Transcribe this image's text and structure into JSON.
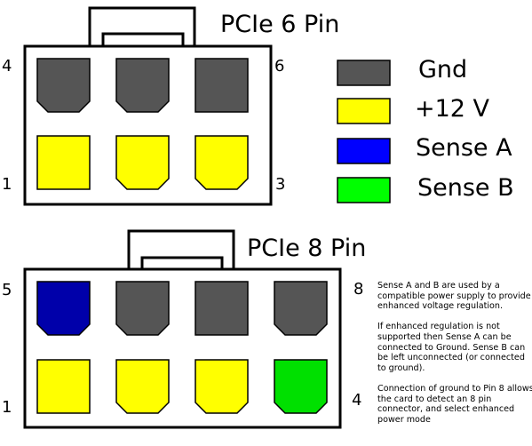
{
  "colors": {
    "gnd": "#555555",
    "v12": "#ffff00",
    "sense_a_legend": "#0000ff",
    "sense_a_pin": "#0000aa",
    "sense_b": "#00ff00",
    "sense_b_pin": "#00e000",
    "outline": "#000000",
    "housing": "#ffffff"
  },
  "connector6": {
    "title": "PCIe 6 Pin",
    "pin_labels": {
      "top_left": "4",
      "top_right": "6",
      "bottom_left": "1",
      "bottom_right": "3"
    },
    "top_row": [
      "gnd",
      "gnd",
      "gnd"
    ],
    "bottom_row": [
      "v12",
      "v12",
      "v12"
    ]
  },
  "connector8": {
    "title": "PCIe 8 Pin",
    "pin_labels": {
      "top_left": "5",
      "top_right": "8",
      "bottom_left": "1",
      "bottom_right": "4"
    },
    "top_row": [
      "sense_a",
      "gnd",
      "gnd",
      "gnd"
    ],
    "bottom_row": [
      "v12",
      "v12",
      "v12",
      "sense_b"
    ]
  },
  "legend": [
    {
      "key": "gnd",
      "label": "Gnd"
    },
    {
      "key": "v12",
      "label": "+12 V"
    },
    {
      "key": "sense_a",
      "label": "Sense A"
    },
    {
      "key": "sense_b",
      "label": "Sense B"
    }
  ],
  "notes": [
    "Sense A and B are used by a compatible power supply to provide enhanced voltage regulation.",
    "If enhanced regulation is not supported then Sense A can be connected to Ground. Sense B can be left unconnected (or connected to ground).",
    "Connection of ground to Pin 8 allows the card to detect an 8 pin connector, and select enhanced power mode"
  ]
}
